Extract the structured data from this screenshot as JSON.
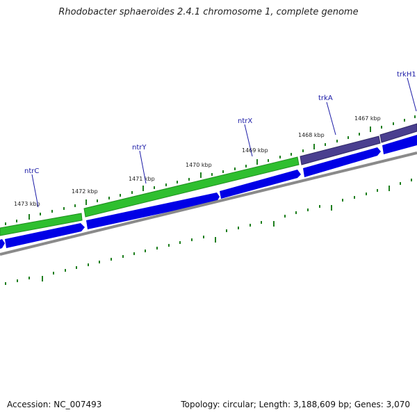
{
  "title": "Rhodobacter sphaeroides 2.4.1 chromosome 1, complete genome",
  "footer": {
    "accession": "Accession: NC_007493",
    "stats": "Topology: circular; Length: 3,188,609 bp; Genes: 3,070"
  },
  "colors": {
    "gene_green": "#2fbf2f",
    "gene_purple": "#4a3f8f",
    "cds_blue": "#0000e6",
    "backbone_grey": "#8a8a8a",
    "tick_green": "#1f7f1f",
    "label_blue": "#1a1aa6"
  },
  "tick_labels": [
    "1473 kbp",
    "1472 kbp",
    "1471 kbp",
    "1470 kbp",
    "1469 kbp",
    "1468 kbp",
    "1467 kbp"
  ],
  "genes": [
    {
      "name": "ntrC",
      "color": "green"
    },
    {
      "name": "ntrY",
      "color": "green"
    },
    {
      "name": "ntrX",
      "color": "green"
    },
    {
      "name": "trkA",
      "color": "purple"
    },
    {
      "name": "trkH1",
      "color": "purple"
    }
  ]
}
